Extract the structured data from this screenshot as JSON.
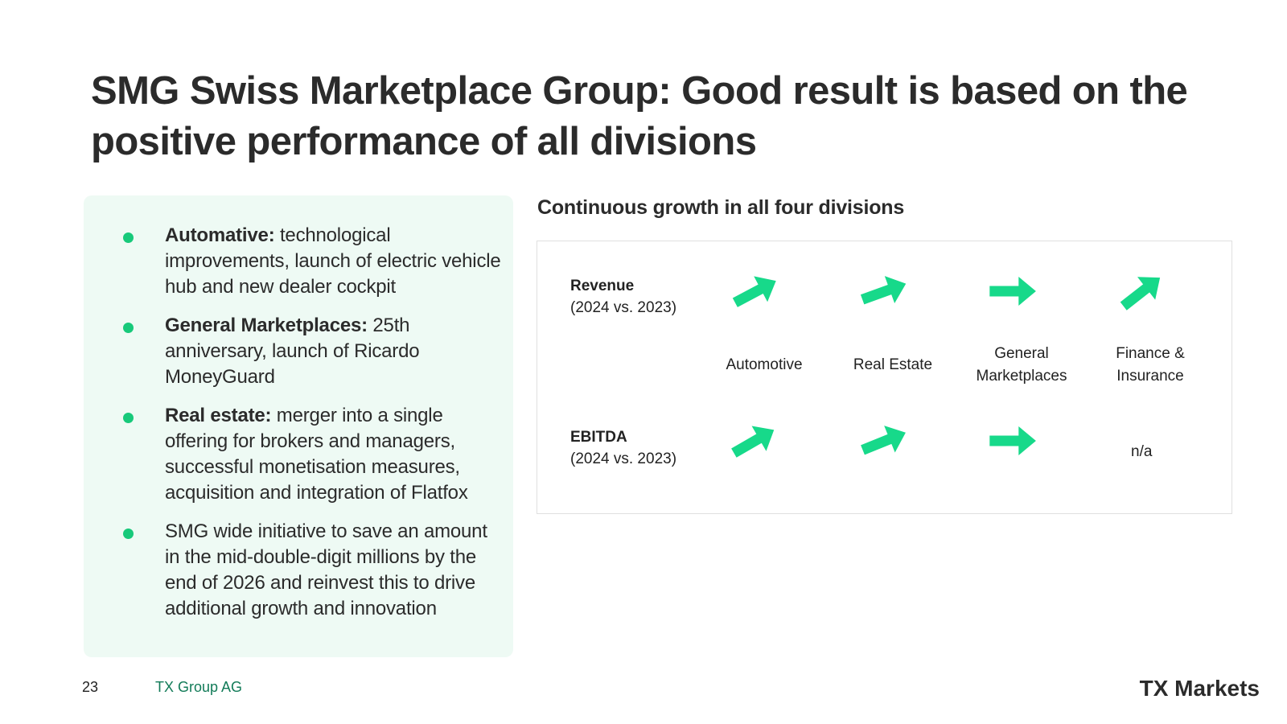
{
  "slide": {
    "title": "SMG Swiss Marketplace Group: Good result is based on the positive performance of all divisions"
  },
  "highlights": [
    {
      "bold": "Automative:",
      "text": " technological improvements, launch of electric vehicle hub and new dealer cockpit"
    },
    {
      "bold": "General Marketplaces:",
      "text": " 25th anniversary, launch of Ricardo MoneyGuard"
    },
    {
      "bold": "Real estate:",
      "text": " merger into a single offering for brokers and managers, successful monetisation measures, acquisition and integration of Flatfox"
    },
    {
      "bold": "",
      "text": "SMG wide initiative to save an amount in the mid-double-digit millions by the end of 2026 and reinvest this to drive additional growth and innovation"
    }
  ],
  "growth": {
    "heading": "Continuous growth in all four divisions",
    "revenue_label": "Revenue",
    "revenue_period": "(2024 vs. 2023)",
    "ebitda_label": "EBITDA",
    "ebitda_period": "(2024 vs. 2023)",
    "divisions": [
      "Automotive",
      "Real Estate",
      "General\nMarketplaces",
      "Finance &\nInsurance"
    ],
    "not_available": "n/a",
    "arrow_color": "#17d98a",
    "arrow_icon": "trend-arrow-icon"
  },
  "footer": {
    "page_number": "23",
    "company": "TX Group AG",
    "brand": "TX Markets"
  }
}
